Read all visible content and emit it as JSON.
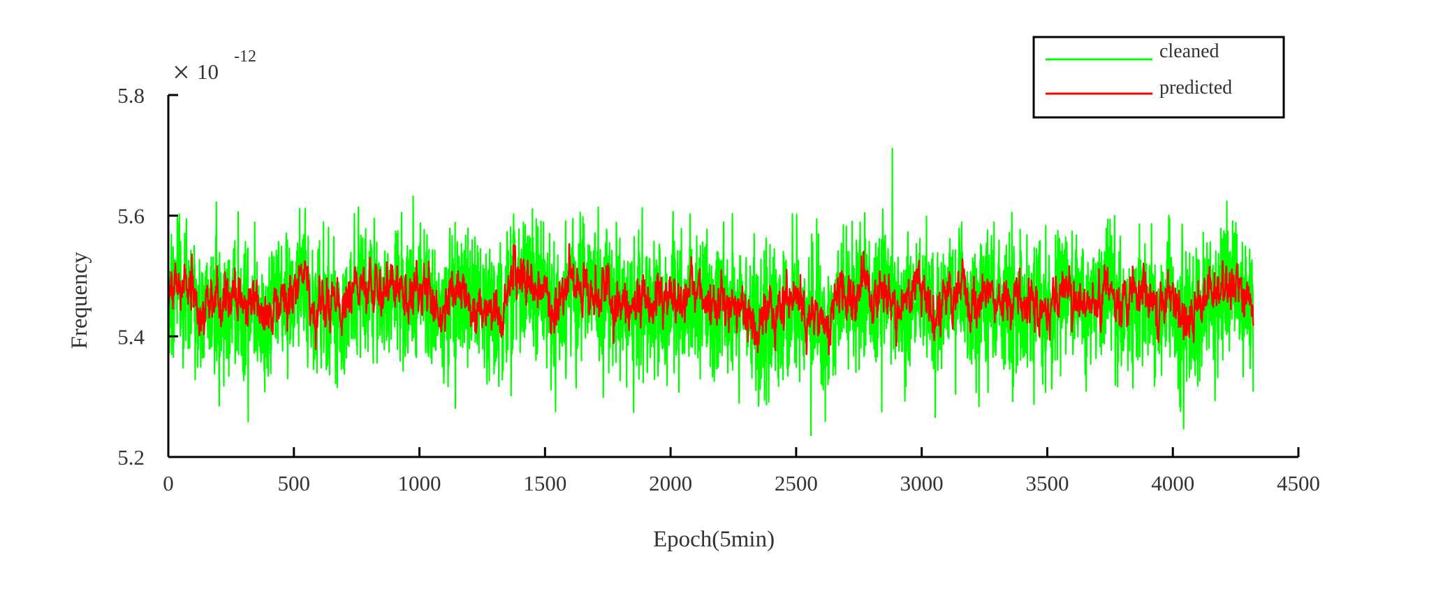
{
  "chart_data": {
    "type": "line",
    "title": "",
    "xlabel": "Epoch(5min)",
    "ylabel": "Frequency",
    "y_exponent_label": {
      "base": "10",
      "exponent": "-12",
      "multiplier_symbol": "×"
    },
    "xlim": [
      0,
      4500
    ],
    "ylim": [
      5.2,
      5.8
    ],
    "x_ticks": [
      0,
      500,
      1000,
      1500,
      2000,
      2500,
      3000,
      3500,
      4000,
      4500
    ],
    "x_tick_labels": [
      "0",
      "500",
      "1000",
      "1500",
      "2000",
      "2500",
      "3000",
      "3500",
      "4000",
      "4500"
    ],
    "y_ticks": [
      5.2,
      5.4,
      5.6,
      5.8
    ],
    "y_tick_labels": [
      "5.2",
      "5.4",
      "5.6",
      "5.8"
    ],
    "grid": false,
    "legend_position": "top-right",
    "x_range": [
      1,
      4320
    ],
    "series": [
      {
        "name": "cleaned",
        "color": "#00ff00",
        "mean": 5.46,
        "min": 5.22,
        "max": 5.73,
        "typical_amplitude": 0.08
      },
      {
        "name": "predicted",
        "color": "#ff0000",
        "mean": 5.465,
        "min": 5.37,
        "max": 5.59,
        "typical_amplitude": 0.025
      }
    ]
  }
}
